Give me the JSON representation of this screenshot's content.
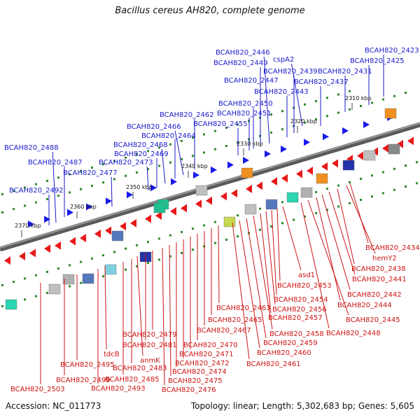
{
  "title": "Bacillus cereus AH820, complete genome",
  "footer": {
    "accession": "Accession: NC_011773",
    "summary": "Topology: linear; Length: 5,302,683 bp; Genes: 5,605"
  },
  "colors": {
    "forward_label": "#1a1acc",
    "reverse_label": "#cc1414",
    "backbone": "#707070",
    "tick_dot": "#2f8a2f"
  },
  "ticks": [
    {
      "label": "2310 kbp"
    },
    {
      "label": "2320 kbp"
    },
    {
      "label": "2330 kbp"
    },
    {
      "label": "2340 kbp"
    },
    {
      "label": "2350 kbp"
    },
    {
      "label": "2360 kbp"
    },
    {
      "label": "2370 kbp"
    }
  ],
  "forward_genes": [
    "BCAH820_2423",
    "BCAH820_2425",
    "BCAH820_2431",
    "BCAH820_2437",
    "cspA2",
    "BCAH820_2439",
    "BCAH820_2443",
    "BCAH820_2446",
    "BCAH820_2449",
    "BCAH820_2447",
    "BCAH820_2450",
    "BCAH820_2451",
    "BCAH820_2455",
    "BCAH820_2462",
    "BCAH820_2466",
    "BCAH820_2464",
    "BCAH820_2468",
    "BCAH820_2469",
    "BCAH820_2473",
    "BCAH820_2477",
    "BCAH820_2487",
    "BCAH820_2488",
    "BCAH820_2492"
  ],
  "reverse_genes": [
    "BCAH820_2434",
    "hemY2",
    "BCAH820_2438",
    "BCAH820_2441",
    "BCAH820_2442",
    "BCAH820_2444",
    "BCAH820_2445",
    "BCAH820_2448",
    "asd1",
    "BCAH820_2453",
    "BCAH820_2454",
    "BCAH820_2456",
    "BCAH820_2457",
    "BCAH820_2458",
    "BCAH820_2459",
    "BCAH820_2460",
    "BCAH820_2461",
    "BCAH820_2463",
    "BCAH820_2465",
    "BCAH820_2467",
    "BCAH820_2470",
    "BCAH820_2471",
    "BCAH820_2472",
    "BCAH820_2474",
    "BCAH820_2475",
    "BCAH820_2476",
    "BCAH820_2479",
    "BCAH820_2481",
    "anmK",
    "BCAH820_2483",
    "BCAH820_2485",
    "tdcB",
    "BCAH820_2493",
    "BCAH820_2495",
    "BCAH820_2499",
    "BCAH820_2503"
  ]
}
